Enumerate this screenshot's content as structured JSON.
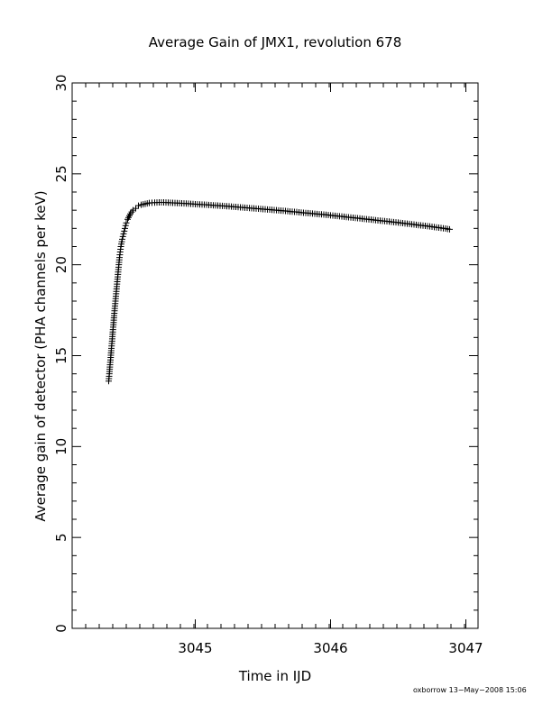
{
  "chart_data": {
    "type": "scatter",
    "title": "Average Gain of JMX1, revolution 678",
    "xlabel": "Time in IJD",
    "ylabel": "Average gain of detector (PHA channels per keV)",
    "xlim": [
      3044.09,
      3047.09
    ],
    "ylim": [
      0,
      30
    ],
    "x_ticks": [
      3045,
      3046,
      3047
    ],
    "y_ticks": [
      0,
      5,
      10,
      15,
      20,
      25,
      30
    ],
    "marker": "+",
    "grid": false,
    "series": [
      {
        "points": [
          [
            3044.36,
            13.6
          ],
          [
            3044.365,
            14.0
          ],
          [
            3044.37,
            14.5
          ],
          [
            3044.375,
            14.9
          ],
          [
            3044.38,
            15.4
          ],
          [
            3044.385,
            15.8
          ],
          [
            3044.39,
            16.3
          ],
          [
            3044.395,
            16.7
          ],
          [
            3044.4,
            17.2
          ],
          [
            3044.405,
            17.6
          ],
          [
            3044.41,
            18.0
          ],
          [
            3044.415,
            18.4
          ],
          [
            3044.42,
            18.8
          ],
          [
            3044.425,
            19.2
          ],
          [
            3044.43,
            19.6
          ],
          [
            3044.435,
            20.0
          ],
          [
            3044.44,
            20.4
          ],
          [
            3044.445,
            20.7
          ],
          [
            3044.45,
            21.0
          ],
          [
            3044.46,
            21.4
          ],
          [
            3044.47,
            21.7
          ],
          [
            3044.48,
            22.0
          ],
          [
            3044.49,
            22.3
          ],
          [
            3044.5,
            22.5
          ],
          [
            3044.52,
            22.8
          ],
          [
            3044.54,
            23.0
          ],
          [
            3044.56,
            23.1
          ],
          [
            3044.58,
            23.25
          ],
          [
            3044.6,
            23.3
          ],
          [
            3044.63,
            23.35
          ],
          [
            3044.66,
            23.4
          ],
          [
            3044.7,
            23.42
          ],
          [
            3044.75,
            23.43
          ],
          [
            3044.8,
            23.42
          ],
          [
            3044.85,
            23.4
          ],
          [
            3044.9,
            23.38
          ],
          [
            3044.95,
            23.36
          ],
          [
            3045.0,
            23.33
          ],
          [
            3045.05,
            23.31
          ],
          [
            3045.1,
            23.29
          ],
          [
            3045.15,
            23.26
          ],
          [
            3045.2,
            23.24
          ],
          [
            3045.25,
            23.21
          ],
          [
            3045.3,
            23.18
          ],
          [
            3045.35,
            23.15
          ],
          [
            3045.4,
            23.12
          ],
          [
            3045.45,
            23.09
          ],
          [
            3045.5,
            23.06
          ],
          [
            3045.55,
            23.03
          ],
          [
            3045.6,
            23.0
          ],
          [
            3045.65,
            22.97
          ],
          [
            3045.7,
            22.93
          ],
          [
            3045.75,
            22.9
          ],
          [
            3045.8,
            22.86
          ],
          [
            3045.85,
            22.83
          ],
          [
            3045.9,
            22.79
          ],
          [
            3045.95,
            22.76
          ],
          [
            3046.0,
            22.72
          ],
          [
            3046.05,
            22.68
          ],
          [
            3046.1,
            22.64
          ],
          [
            3046.15,
            22.6
          ],
          [
            3046.2,
            22.56
          ],
          [
            3046.25,
            22.52
          ],
          [
            3046.3,
            22.48
          ],
          [
            3046.35,
            22.44
          ],
          [
            3046.4,
            22.4
          ],
          [
            3046.45,
            22.36
          ],
          [
            3046.5,
            22.32
          ],
          [
            3046.55,
            22.27
          ],
          [
            3046.6,
            22.23
          ],
          [
            3046.65,
            22.18
          ],
          [
            3046.7,
            22.14
          ],
          [
            3046.75,
            22.09
          ],
          [
            3046.8,
            22.04
          ],
          [
            3046.85,
            21.99
          ],
          [
            3046.88,
            21.95
          ]
        ]
      }
    ]
  },
  "footer": {
    "credit": "oxborrow 13−May−2008 15:06"
  }
}
